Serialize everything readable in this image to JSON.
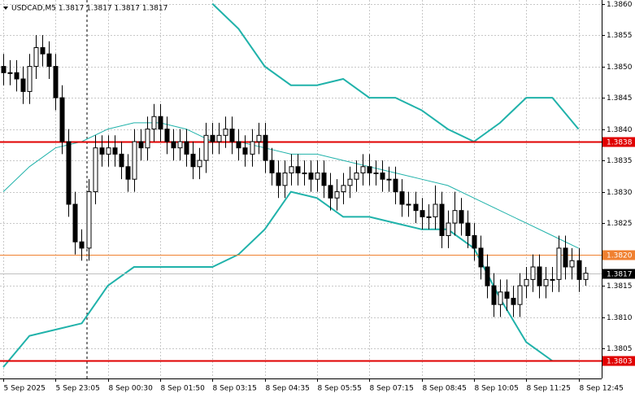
{
  "chart_data": {
    "type": "candlestick",
    "title": "USDCAD,M5  1.3817 1.3817 1.3817 1.3817",
    "categories": [
      "5 Sep 2025",
      null,
      null,
      null,
      null,
      null,
      null,
      null,
      "5 Sep 23:05",
      null,
      null,
      null,
      null,
      null,
      null,
      null,
      "8 Sep 00:30",
      null,
      null,
      null,
      null,
      null,
      null,
      null,
      "8 Sep 01:50",
      null,
      null,
      null,
      null,
      null,
      null,
      null,
      "8 Sep 03:15",
      null,
      null,
      null,
      null,
      null,
      null,
      null,
      "8 Sep 04:35",
      null,
      null,
      null,
      null,
      null,
      null,
      null,
      "8 Sep 05:55",
      null,
      null,
      null,
      null,
      null,
      null,
      null,
      "8 Sep 07:15",
      null,
      null,
      null,
      null,
      null,
      null,
      null,
      "8 Sep 08:45",
      null,
      null,
      null,
      null,
      null,
      null,
      null,
      "8 Sep 10:05",
      null,
      null,
      null,
      null,
      null,
      null,
      null,
      "8 Sep 11:25",
      null,
      null,
      null,
      null,
      null,
      null,
      null,
      "8 Sep 12:45",
      null
    ],
    "open": [
      1.385,
      1.3849,
      1.3849,
      1.3848,
      1.3846,
      1.385,
      1.3853,
      1.3852,
      1.385,
      1.3845,
      1.3838,
      1.3828,
      1.3822,
      1.3821,
      1.383,
      1.3837,
      1.3836,
      1.3837,
      1.3836,
      1.3834,
      1.3832,
      1.3838,
      1.3837,
      1.384,
      1.3842,
      1.384,
      1.3838,
      1.3837,
      1.3838,
      1.3836,
      1.3834,
      1.3835,
      1.3839,
      1.3838,
      1.3839,
      1.384,
      1.3838,
      1.3837,
      1.3836,
      1.3838,
      1.3839,
      1.3835,
      1.3833,
      1.3831,
      1.3833,
      1.3834,
      1.3833,
      1.3833,
      1.3832,
      1.3833,
      1.3831,
      1.3829,
      1.383,
      1.3831,
      1.3832,
      1.3833,
      1.3834,
      1.3833,
      1.3833,
      1.3832,
      1.3832,
      1.383,
      1.3828,
      1.3828,
      1.3827,
      1.3826,
      1.3826,
      1.3828,
      1.3823,
      1.3825,
      1.3827,
      1.3825,
      1.3823,
      1.3821,
      1.3818,
      1.3815,
      1.3812,
      1.3814,
      1.3813,
      1.3812,
      1.3815,
      1.3816,
      1.3818,
      1.3815,
      1.3816,
      1.3816,
      1.3821,
      1.3818,
      1.3819,
      1.3816
    ],
    "high": [
      1.3852,
      1.3851,
      1.3851,
      1.385,
      1.3852,
      1.3855,
      1.3855,
      1.3854,
      1.3852,
      1.3847,
      1.384,
      1.383,
      1.3824,
      1.3832,
      1.3839,
      1.3839,
      1.3839,
      1.3839,
      1.3838,
      1.3836,
      1.384,
      1.384,
      1.3842,
      1.3844,
      1.3844,
      1.3842,
      1.384,
      1.384,
      1.384,
      1.3838,
      1.3837,
      1.3841,
      1.3841,
      1.3841,
      1.3842,
      1.3842,
      1.384,
      1.3839,
      1.384,
      1.3841,
      1.3841,
      1.3837,
      1.3835,
      1.3835,
      1.3836,
      1.3836,
      1.3835,
      1.3835,
      1.3835,
      1.3835,
      1.3833,
      1.3832,
      1.3833,
      1.3834,
      1.3835,
      1.3836,
      1.3836,
      1.3835,
      1.3835,
      1.3834,
      1.3834,
      1.3832,
      1.383,
      1.383,
      1.3829,
      1.3828,
      1.3831,
      1.383,
      1.3827,
      1.383,
      1.3829,
      1.3827,
      1.3825,
      1.3823,
      1.382,
      1.3817,
      1.3816,
      1.3816,
      1.3815,
      1.3817,
      1.3818,
      1.382,
      1.382,
      1.3818,
      1.3818,
      1.3823,
      1.3823,
      1.3821,
      1.3821,
      1.3818
    ],
    "low": [
      1.3847,
      1.3847,
      1.3846,
      1.3844,
      1.3844,
      1.3848,
      1.385,
      1.3848,
      1.3843,
      1.3836,
      1.3826,
      1.382,
      1.3819,
      1.3819,
      1.3828,
      1.3834,
      1.3834,
      1.3834,
      1.3832,
      1.383,
      1.383,
      1.3835,
      1.3835,
      1.3838,
      1.3838,
      1.3836,
      1.3835,
      1.3835,
      1.3834,
      1.3832,
      1.3832,
      1.3833,
      1.3836,
      1.3836,
      1.3837,
      1.3836,
      1.3835,
      1.3834,
      1.3834,
      1.3836,
      1.3833,
      1.3831,
      1.3829,
      1.3829,
      1.3831,
      1.3831,
      1.3831,
      1.383,
      1.383,
      1.3829,
      1.3827,
      1.3827,
      1.3828,
      1.3829,
      1.383,
      1.3831,
      1.3831,
      1.3831,
      1.383,
      1.383,
      1.3828,
      1.3826,
      1.3826,
      1.3825,
      1.3824,
      1.3824,
      1.3824,
      1.3821,
      1.3821,
      1.3823,
      1.3823,
      1.3821,
      1.3819,
      1.3816,
      1.3813,
      1.381,
      1.381,
      1.3811,
      1.381,
      1.381,
      1.3813,
      1.3814,
      1.3813,
      1.3813,
      1.3814,
      1.3814,
      1.3816,
      1.3816,
      1.3814,
      1.3815
    ],
    "close": [
      1.3849,
      1.3849,
      1.3848,
      1.3846,
      1.385,
      1.3853,
      1.3852,
      1.385,
      1.3845,
      1.3838,
      1.3828,
      1.3822,
      1.3821,
      1.383,
      1.3837,
      1.3836,
      1.3837,
      1.3836,
      1.3834,
      1.3832,
      1.3838,
      1.3837,
      1.384,
      1.3842,
      1.384,
      1.3838,
      1.3837,
      1.3838,
      1.3836,
      1.3834,
      1.3835,
      1.3839,
      1.3838,
      1.3839,
      1.384,
      1.3838,
      1.3837,
      1.3836,
      1.3838,
      1.3839,
      1.3835,
      1.3833,
      1.3831,
      1.3833,
      1.3834,
      1.3833,
      1.3833,
      1.3832,
      1.3833,
      1.3831,
      1.3829,
      1.383,
      1.3831,
      1.3832,
      1.3833,
      1.3834,
      1.3833,
      1.3833,
      1.3832,
      1.3832,
      1.383,
      1.3828,
      1.3828,
      1.3827,
      1.3826,
      1.3826,
      1.3828,
      1.3823,
      1.3825,
      1.3827,
      1.3825,
      1.3823,
      1.3821,
      1.3818,
      1.3815,
      1.3812,
      1.3814,
      1.3813,
      1.3812,
      1.3815,
      1.3816,
      1.3818,
      1.3815,
      1.3816,
      1.3816,
      1.3821,
      1.3818,
      1.3819,
      1.3816,
      1.3817
    ],
    "bands": {
      "x": [
        0,
        4,
        8,
        12,
        16,
        20,
        24,
        28,
        32,
        36,
        40,
        44,
        48,
        52,
        56,
        60,
        64,
        68,
        72,
        76,
        80,
        84,
        88
      ],
      "series": [
        {
          "color": "#20b2aa",
          "width": 2,
          "values": [
            null,
            null,
            null,
            null,
            null,
            null,
            null,
            null,
            1.386,
            1.3856,
            1.385,
            1.3847,
            1.3847,
            1.3848,
            1.3845,
            1.3845,
            1.3843,
            1.384,
            1.3838,
            1.3841,
            1.3845,
            1.3845,
            1.384
          ]
        },
        {
          "color": "#20b2aa",
          "width": 1,
          "values": [
            1.383,
            1.3834,
            1.3837,
            1.3838,
            1.384,
            1.3841,
            1.3841,
            1.384,
            1.3838,
            1.3838,
            1.3837,
            1.3836,
            1.3836,
            1.3835,
            1.3834,
            1.3833,
            1.3832,
            1.3831,
            1.3829,
            1.3827,
            1.3825,
            1.3823,
            1.3821
          ]
        },
        {
          "color": "#20b2aa",
          "width": 2,
          "values": [
            1.3802,
            1.3807,
            1.3808,
            1.3809,
            1.3815,
            1.3818,
            1.3818,
            1.3818,
            1.3818,
            1.382,
            1.3824,
            1.383,
            1.3829,
            1.3826,
            1.3826,
            1.3825,
            1.3824,
            1.3824,
            1.3821,
            1.3813,
            1.3806,
            1.3803,
            1.3803
          ]
        }
      ]
    },
    "levels": [
      {
        "value": 1.3838,
        "label": "1.3838",
        "color": "#e00000",
        "width": 2
      },
      {
        "value": 1.382,
        "label": "1.3820",
        "color": "#f08030",
        "width": 1
      },
      {
        "value": 1.3803,
        "label": "1.3803",
        "color": "#e00000",
        "width": 2
      }
    ],
    "last": {
      "value": 1.3817,
      "label": "1.3817",
      "color": "#c0c0c0"
    },
    "ylim": [
      1.38002,
      1.38606
    ],
    "yticks": [
      {
        "value": 1.386,
        "label": "1.3860"
      },
      1.3855,
      {
        "value": 1.385,
        "label": "1.3850"
      },
      1.3845,
      {
        "value": 1.384,
        "label": "1.3840"
      },
      1.3835,
      {
        "value": 1.383,
        "label": "1.3830"
      },
      1.3825,
      {
        "value": 1.382,
        "label": "1.3820"
      },
      1.3815,
      {
        "value": 1.381,
        "label": "1.3810"
      },
      1.3805
    ],
    "grid": true
  }
}
